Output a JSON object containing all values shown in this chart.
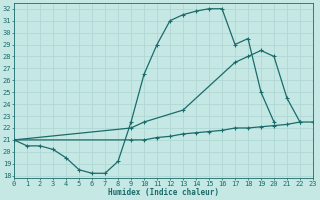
{
  "xlabel": "Humidex (Indice chaleur)",
  "bg_color": "#c6e8e4",
  "grid_color": "#b0d8d4",
  "line_color": "#1a6b6b",
  "series": [
    {
      "x": [
        0,
        1,
        2,
        3,
        4,
        5,
        6,
        7,
        8,
        9,
        10,
        11,
        12,
        13,
        14,
        15,
        16,
        17,
        18,
        19,
        20,
        21
      ],
      "y": [
        21.0,
        20.5,
        20.5,
        20.2,
        19.5,
        18.5,
        18.2,
        18.2,
        19.2,
        22.5,
        26.5,
        29.0,
        31.0,
        31.5,
        31.8,
        32.0,
        32.0,
        29.0,
        29.5,
        25.0,
        22.5,
        null
      ]
    },
    {
      "x": [
        0,
        9,
        10,
        13,
        17,
        18,
        19,
        20,
        21,
        22
      ],
      "y": [
        21.0,
        22.0,
        22.5,
        23.5,
        27.5,
        28.0,
        28.5,
        28.0,
        24.5,
        22.5
      ]
    },
    {
      "x": [
        0,
        9,
        10,
        11,
        12,
        13,
        14,
        15,
        16,
        17,
        18,
        19,
        20,
        21,
        22,
        23
      ],
      "y": [
        21.0,
        21.0,
        21.0,
        21.2,
        21.3,
        21.5,
        21.6,
        21.7,
        21.8,
        22.0,
        22.0,
        22.1,
        22.2,
        22.3,
        22.5,
        22.5
      ]
    }
  ],
  "xlim": [
    0,
    23
  ],
  "ylim": [
    17.8,
    32.5
  ],
  "yticks": [
    18,
    19,
    20,
    21,
    22,
    23,
    24,
    25,
    26,
    27,
    28,
    29,
    30,
    31,
    32
  ],
  "xticks": [
    0,
    1,
    2,
    3,
    4,
    5,
    6,
    7,
    8,
    9,
    10,
    11,
    12,
    13,
    14,
    15,
    16,
    17,
    18,
    19,
    20,
    21,
    22,
    23
  ]
}
